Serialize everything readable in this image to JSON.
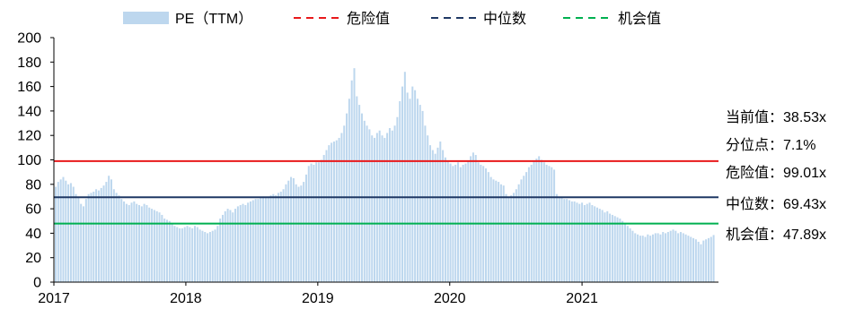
{
  "chart_data": {
    "type": "bar",
    "xlim": [
      "2017-01-01",
      "2022-01-01"
    ],
    "ylim": [
      0,
      200
    ],
    "yticks": [
      0,
      20,
      40,
      60,
      80,
      100,
      120,
      140,
      160,
      180,
      200
    ],
    "xticks": [
      "2017",
      "2018",
      "2019",
      "2020",
      "2021"
    ],
    "grid": false,
    "legend_position": "top",
    "series": [
      {
        "name": "PE（TTM）",
        "color": "#bdd7ee",
        "dates": [
          "2017-01-06",
          "2017-01-13",
          "2017-01-20",
          "2017-01-27",
          "2017-02-03",
          "2017-02-10",
          "2017-02-17",
          "2017-02-24",
          "2017-03-03",
          "2017-03-10",
          "2017-03-17",
          "2017-03-24",
          "2017-03-31",
          "2017-04-07",
          "2017-04-14",
          "2017-04-21",
          "2017-04-28",
          "2017-05-05",
          "2017-05-12",
          "2017-05-19",
          "2017-05-26",
          "2017-06-02",
          "2017-06-09",
          "2017-06-16",
          "2017-06-23",
          "2017-06-30",
          "2017-07-07",
          "2017-07-14",
          "2017-07-21",
          "2017-07-28",
          "2017-08-04",
          "2017-08-11",
          "2017-08-18",
          "2017-08-25",
          "2017-09-01",
          "2017-09-08",
          "2017-09-15",
          "2017-09-22",
          "2017-09-29",
          "2017-10-06",
          "2017-10-13",
          "2017-10-20",
          "2017-10-27",
          "2017-11-03",
          "2017-11-10",
          "2017-11-17",
          "2017-11-24",
          "2017-12-01",
          "2017-12-08",
          "2017-12-15",
          "2017-12-22",
          "2017-12-29",
          "2018-01-05",
          "2018-01-12",
          "2018-01-19",
          "2018-01-26",
          "2018-02-02",
          "2018-02-09",
          "2018-02-16",
          "2018-02-23",
          "2018-03-02",
          "2018-03-09",
          "2018-03-16",
          "2018-03-23",
          "2018-03-30",
          "2018-04-06",
          "2018-04-13",
          "2018-04-20",
          "2018-04-27",
          "2018-05-04",
          "2018-05-11",
          "2018-05-18",
          "2018-05-25",
          "2018-06-01",
          "2018-06-08",
          "2018-06-15",
          "2018-06-22",
          "2018-06-29",
          "2018-07-06",
          "2018-07-13",
          "2018-07-20",
          "2018-07-27",
          "2018-08-03",
          "2018-08-10",
          "2018-08-17",
          "2018-08-24",
          "2018-08-31",
          "2018-09-07",
          "2018-09-14",
          "2018-09-21",
          "2018-09-28",
          "2018-10-05",
          "2018-10-12",
          "2018-10-19",
          "2018-10-26",
          "2018-11-02",
          "2018-11-09",
          "2018-11-16",
          "2018-11-23",
          "2018-11-30",
          "2018-12-07",
          "2018-12-14",
          "2018-12-21",
          "2018-12-28",
          "2019-01-04",
          "2019-01-11",
          "2019-01-18",
          "2019-01-25",
          "2019-02-01",
          "2019-02-08",
          "2019-02-15",
          "2019-02-22",
          "2019-03-01",
          "2019-03-08",
          "2019-03-15",
          "2019-03-22",
          "2019-03-29",
          "2019-04-05",
          "2019-04-12",
          "2019-04-19",
          "2019-04-26",
          "2019-05-03",
          "2019-05-10",
          "2019-05-17",
          "2019-05-24",
          "2019-05-31",
          "2019-06-07",
          "2019-06-14",
          "2019-06-21",
          "2019-06-28",
          "2019-07-05",
          "2019-07-12",
          "2019-07-19",
          "2019-07-26",
          "2019-08-02",
          "2019-08-09",
          "2019-08-16",
          "2019-08-23",
          "2019-08-30",
          "2019-09-06",
          "2019-09-13",
          "2019-09-20",
          "2019-09-27",
          "2019-10-04",
          "2019-10-11",
          "2019-10-18",
          "2019-10-25",
          "2019-11-01",
          "2019-11-08",
          "2019-11-15",
          "2019-11-22",
          "2019-11-29",
          "2019-12-06",
          "2019-12-13",
          "2019-12-20",
          "2019-12-27",
          "2020-01-03",
          "2020-01-10",
          "2020-01-17",
          "2020-01-24",
          "2020-01-31",
          "2020-02-07",
          "2020-02-14",
          "2020-02-21",
          "2020-02-28",
          "2020-03-06",
          "2020-03-13",
          "2020-03-20",
          "2020-03-27",
          "2020-04-03",
          "2020-04-10",
          "2020-04-17",
          "2020-04-24",
          "2020-05-01",
          "2020-05-08",
          "2020-05-15",
          "2020-05-22",
          "2020-05-29",
          "2020-06-05",
          "2020-06-12",
          "2020-06-19",
          "2020-06-26",
          "2020-07-03",
          "2020-07-10",
          "2020-07-17",
          "2020-07-24",
          "2020-07-31",
          "2020-08-07",
          "2020-08-14",
          "2020-08-21",
          "2020-08-28",
          "2020-09-04",
          "2020-09-11",
          "2020-09-18",
          "2020-09-25",
          "2020-10-02",
          "2020-10-09",
          "2020-10-16",
          "2020-10-23",
          "2020-10-30",
          "2020-11-06",
          "2020-11-13",
          "2020-11-20",
          "2020-11-27",
          "2020-12-04",
          "2020-12-11",
          "2020-12-18",
          "2020-12-25",
          "2021-01-01",
          "2021-01-08",
          "2021-01-15",
          "2021-01-22",
          "2021-01-29",
          "2021-02-05",
          "2021-02-12",
          "2021-02-19",
          "2021-02-26",
          "2021-03-05",
          "2021-03-12",
          "2021-03-19",
          "2021-03-26",
          "2021-04-02",
          "2021-04-09",
          "2021-04-16",
          "2021-04-23",
          "2021-04-30",
          "2021-05-07",
          "2021-05-14",
          "2021-05-21",
          "2021-05-28",
          "2021-06-04",
          "2021-06-11",
          "2021-06-18",
          "2021-06-25",
          "2021-07-02",
          "2021-07-09",
          "2021-07-16",
          "2021-07-23",
          "2021-07-30",
          "2021-08-06",
          "2021-08-13",
          "2021-08-20",
          "2021-08-27",
          "2021-09-03",
          "2021-09-10",
          "2021-09-17",
          "2021-09-24",
          "2021-10-01",
          "2021-10-08",
          "2021-10-15",
          "2021-10-22",
          "2021-10-29",
          "2021-11-05",
          "2021-11-12",
          "2021-11-19",
          "2021-11-26",
          "2021-12-03",
          "2021-12-10",
          "2021-12-17",
          "2021-12-24",
          "2021-12-31"
        ],
        "values": [
          78,
          82,
          84,
          86,
          83,
          80,
          81,
          78,
          72,
          70,
          64,
          62,
          68,
          72,
          73,
          74,
          76,
          75,
          77,
          79,
          82,
          87,
          84,
          76,
          73,
          71,
          68,
          66,
          64,
          63,
          65,
          66,
          64,
          63,
          62,
          64,
          63,
          61,
          60,
          59,
          58,
          57,
          55,
          52,
          51,
          50,
          48,
          46,
          45,
          44,
          44,
          45,
          46,
          45,
          44,
          46,
          45,
          43,
          42,
          41,
          40,
          41,
          42,
          43,
          46,
          52,
          55,
          58,
          60,
          59,
          57,
          60,
          62,
          63,
          64,
          63,
          65,
          66,
          67,
          68,
          68,
          69,
          70,
          69,
          70,
          71,
          72,
          71,
          73,
          74,
          76,
          80,
          83,
          86,
          85,
          80,
          78,
          79,
          82,
          88,
          95,
          97,
          96,
          98,
          98,
          100,
          104,
          108,
          112,
          114,
          115,
          116,
          118,
          122,
          128,
          138,
          150,
          165,
          175,
          152,
          145,
          138,
          132,
          128,
          125,
          120,
          118,
          122,
          124,
          120,
          118,
          122,
          126,
          124,
          128,
          135,
          148,
          160,
          172,
          155,
          150,
          160,
          157,
          150,
          145,
          140,
          128,
          120,
          112,
          108,
          105,
          110,
          115,
          108,
          102,
          99,
          97,
          95,
          96,
          98,
          94,
          96,
          97,
          99,
          103,
          106,
          104,
          98,
          96,
          95,
          93,
          90,
          86,
          84,
          83,
          82,
          80,
          79,
          72,
          70,
          71,
          73,
          76,
          80,
          84,
          87,
          90,
          94,
          96,
          99,
          101,
          103,
          100,
          98,
          96,
          95,
          94,
          92,
          72,
          70,
          69,
          68,
          68,
          67,
          66,
          66,
          65,
          64,
          65,
          63,
          64,
          65,
          63,
          62,
          61,
          60,
          59,
          57,
          58,
          56,
          55,
          54,
          53,
          52,
          50,
          48,
          46,
          44,
          42,
          40,
          39,
          38,
          38,
          37,
          39,
          38,
          39,
          40,
          40,
          39,
          41,
          40,
          41,
          42,
          43,
          42,
          40,
          41,
          40,
          39,
          38,
          37,
          36,
          35,
          33,
          31,
          34,
          35,
          36,
          37,
          38.53
        ]
      }
    ],
    "reference_lines": [
      {
        "name": "危险值",
        "value": 99.01,
        "color": "#e8191b"
      },
      {
        "name": "中位数",
        "value": 69.43,
        "color": "#1f3864"
      },
      {
        "name": "机会值",
        "value": 47.89,
        "color": "#00b050"
      }
    ],
    "annotations": [
      {
        "label": "当前值：",
        "value": "38.53x"
      },
      {
        "label": "分位点：",
        "value": "7.1%"
      },
      {
        "label": "危险值：",
        "value": "99.01x"
      },
      {
        "label": "中位数：",
        "value": "69.43x"
      },
      {
        "label": "机会值：",
        "value": "47.89x"
      }
    ]
  }
}
